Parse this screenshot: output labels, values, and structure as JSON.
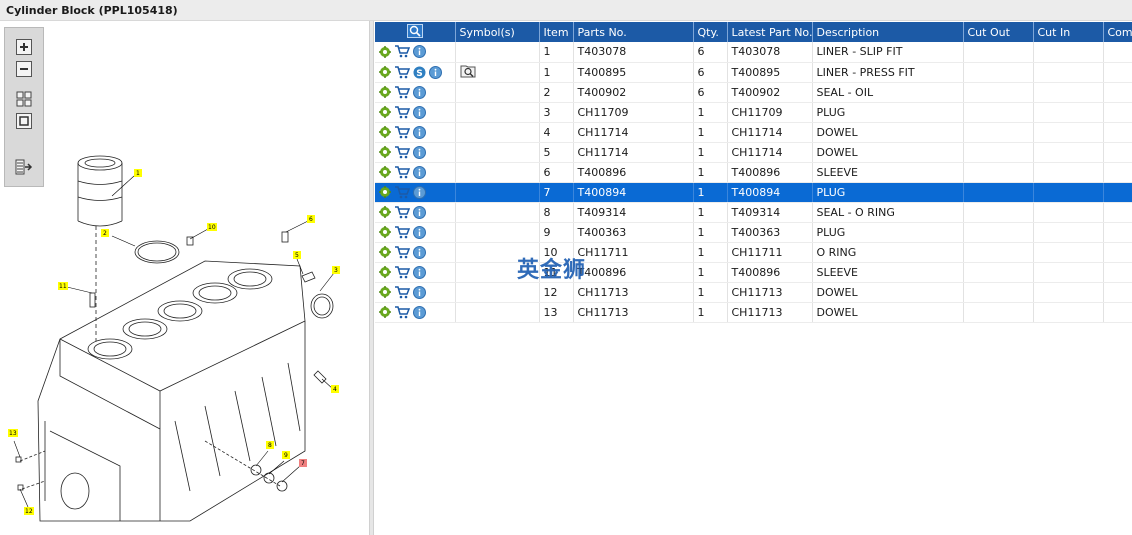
{
  "window": {
    "title": "Cylinder Block (PPL105418)"
  },
  "toolbar": {
    "buttons": [
      "zoom-in",
      "zoom-out",
      "fit-all",
      "actual-size",
      "show-list"
    ]
  },
  "diagram": {
    "callouts": [
      "1",
      "2",
      "3",
      "4",
      "5",
      "6",
      "7",
      "8",
      "9",
      "10",
      "11",
      "12",
      "13"
    ]
  },
  "table": {
    "headers": {
      "actions": "",
      "symbols": "Symbol(s)",
      "item": "Item",
      "parts_no": "Parts No.",
      "qty": "Qty.",
      "latest_part_no": "Latest Part No.",
      "description": "Description",
      "cut_out": "Cut Out",
      "cut_in": "Cut In",
      "comment": "Comment"
    },
    "rows": [
      {
        "item": "1",
        "parts_no": "T403078",
        "qty": "6",
        "latest": "T403078",
        "description": "LINER - SLIP FIT",
        "cut_out": "",
        "cut_in": "",
        "comment": "",
        "has_s": false,
        "has_symbol": false,
        "selected": false
      },
      {
        "item": "1",
        "parts_no": "T400895",
        "qty": "6",
        "latest": "T400895",
        "description": "LINER - PRESS FIT",
        "cut_out": "",
        "cut_in": "",
        "comment": "",
        "has_s": true,
        "has_symbol": true,
        "selected": false
      },
      {
        "item": "2",
        "parts_no": "T400902",
        "qty": "6",
        "latest": "T400902",
        "description": "SEAL - OIL",
        "cut_out": "",
        "cut_in": "",
        "comment": "",
        "has_s": false,
        "has_symbol": false,
        "selected": false
      },
      {
        "item": "3",
        "parts_no": "CH11709",
        "qty": "1",
        "latest": "CH11709",
        "description": "PLUG",
        "cut_out": "",
        "cut_in": "",
        "comment": "",
        "has_s": false,
        "has_symbol": false,
        "selected": false
      },
      {
        "item": "4",
        "parts_no": "CH11714",
        "qty": "1",
        "latest": "CH11714",
        "description": "DOWEL",
        "cut_out": "",
        "cut_in": "",
        "comment": "",
        "has_s": false,
        "has_symbol": false,
        "selected": false
      },
      {
        "item": "5",
        "parts_no": "CH11714",
        "qty": "1",
        "latest": "CH11714",
        "description": "DOWEL",
        "cut_out": "",
        "cut_in": "",
        "comment": "",
        "has_s": false,
        "has_symbol": false,
        "selected": false
      },
      {
        "item": "6",
        "parts_no": "T400896",
        "qty": "1",
        "latest": "T400896",
        "description": "SLEEVE",
        "cut_out": "",
        "cut_in": "",
        "comment": "",
        "has_s": false,
        "has_symbol": false,
        "selected": false
      },
      {
        "item": "7",
        "parts_no": "T400894",
        "qty": "1",
        "latest": "T400894",
        "description": "PLUG",
        "cut_out": "",
        "cut_in": "",
        "comment": "",
        "has_s": false,
        "has_symbol": false,
        "selected": true
      },
      {
        "item": "8",
        "parts_no": "T409314",
        "qty": "1",
        "latest": "T409314",
        "description": "SEAL - O RING",
        "cut_out": "",
        "cut_in": "",
        "comment": "",
        "has_s": false,
        "has_symbol": false,
        "selected": false
      },
      {
        "item": "9",
        "parts_no": "T400363",
        "qty": "1",
        "latest": "T400363",
        "description": "PLUG",
        "cut_out": "",
        "cut_in": "",
        "comment": "",
        "has_s": false,
        "has_symbol": false,
        "selected": false
      },
      {
        "item": "10",
        "parts_no": "CH11711",
        "qty": "1",
        "latest": "CH11711",
        "description": "O RING",
        "cut_out": "",
        "cut_in": "",
        "comment": "",
        "has_s": false,
        "has_symbol": false,
        "selected": false
      },
      {
        "item": "11",
        "parts_no": "T400896",
        "qty": "1",
        "latest": "T400896",
        "description": "SLEEVE",
        "cut_out": "",
        "cut_in": "",
        "comment": "",
        "has_s": false,
        "has_symbol": false,
        "selected": false
      },
      {
        "item": "12",
        "parts_no": "CH11713",
        "qty": "1",
        "latest": "CH11713",
        "description": "DOWEL",
        "cut_out": "",
        "cut_in": "",
        "comment": "",
        "has_s": false,
        "has_symbol": false,
        "selected": false
      },
      {
        "item": "13",
        "parts_no": "CH11713",
        "qty": "1",
        "latest": "CH11713",
        "description": "DOWEL",
        "cut_out": "",
        "cut_in": "",
        "comment": "",
        "has_s": false,
        "has_symbol": false,
        "selected": false
      }
    ]
  },
  "watermark": {
    "text": "英金狮"
  },
  "colors": {
    "header_bg": "#1c5aa6",
    "selected_row": "#0a6ad4",
    "callout_yellow": "#ffff00",
    "callout_selected": "#f08080"
  }
}
